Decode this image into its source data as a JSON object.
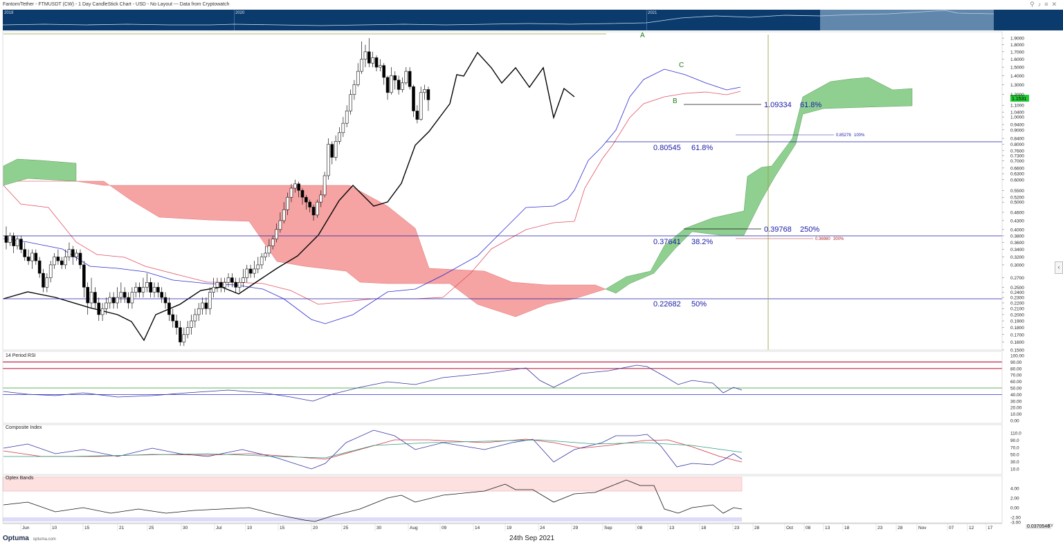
{
  "title": "Fantom/Tether - FTMUSDT (CW) - 1 Day CandleStick Chart - USD - No Layout --- Data from Cryptowatch",
  "toolbar_icons": [
    "pin-icon",
    "bell-icon",
    "menu-icon",
    "close-icon"
  ],
  "overview": {
    "years": [
      "2019",
      "2020",
      "2021"
    ]
  },
  "price_badge": "1.1531",
  "footer": {
    "logo": "Optuma",
    "site": "optuma.com",
    "date": "24th Sep 2021",
    "value": "0.0370546",
    "xy": "XY"
  },
  "panels": {
    "rsi": "14 Period RSI",
    "composite": "Composite Index",
    "optex": "Optex Bands"
  },
  "colors": {
    "up": "#ffffff",
    "down": "#000000",
    "kijun": "#e05060",
    "tenkan": "#2a2ad0",
    "bull_cloud": "#8fcf8f",
    "bear_cloud": "#f59a9a",
    "fib": "#1a1aa8",
    "badge": "#22cc33",
    "overview": "#0b3a6c"
  },
  "chart_data": {
    "type": "candlestick",
    "title": "Fantom/Tether - FTMUSDT (CW) - 1 Day CandleStick Chart - USD",
    "yscale": "log",
    "ylim": [
      0.15,
      2.0
    ],
    "y_ticks": [
      "1.9000",
      "1.8000",
      "1.7000",
      "1.6000",
      "1.5000",
      "1.4000",
      "1.3000",
      "1.2000",
      "1.1000",
      "1.0400",
      "1.0000",
      "0.9400",
      "0.9000",
      "0.8400",
      "0.8000",
      "0.7600",
      "0.7300",
      "0.7000",
      "0.6600",
      "0.6300",
      "0.6000",
      "0.5500",
      "0.5200",
      "0.5000",
      "0.4600",
      "0.4300",
      "0.4000",
      "0.3800",
      "0.3600",
      "0.3400",
      "0.3200",
      "0.3000",
      "0.2700",
      "0.2500",
      "0.2400",
      "0.2300",
      "0.2200",
      "0.2100",
      "0.2000",
      "0.1900",
      "0.1800",
      "0.1700",
      "0.1600",
      "0.1500"
    ],
    "x_ticks": [
      "Jun",
      "10",
      "15",
      "21",
      "25",
      "30",
      "Jul",
      "10",
      "15",
      "20",
      "25",
      "30",
      "Aug",
      "09",
      "14",
      "19",
      "24",
      "29",
      "Sep",
      "08",
      "13",
      "18",
      "23",
      "28",
      "Oct",
      "08",
      "13",
      "18",
      "23",
      "28",
      "Nov",
      "07",
      "12",
      "17"
    ],
    "candles": [
      [
        0.38,
        0.36,
        0.41,
        0.34
      ],
      [
        0.36,
        0.38,
        0.39,
        0.35
      ],
      [
        0.38,
        0.35,
        0.39,
        0.33
      ],
      [
        0.35,
        0.37,
        0.38,
        0.34
      ],
      [
        0.37,
        0.34,
        0.38,
        0.33
      ],
      [
        0.34,
        0.32,
        0.36,
        0.31
      ],
      [
        0.32,
        0.31,
        0.34,
        0.3
      ],
      [
        0.31,
        0.33,
        0.34,
        0.29
      ],
      [
        0.33,
        0.31,
        0.34,
        0.3
      ],
      [
        0.31,
        0.28,
        0.32,
        0.27
      ],
      [
        0.28,
        0.25,
        0.29,
        0.24
      ],
      [
        0.25,
        0.27,
        0.28,
        0.24
      ],
      [
        0.27,
        0.3,
        0.31,
        0.26
      ],
      [
        0.3,
        0.32,
        0.33,
        0.29
      ],
      [
        0.32,
        0.31,
        0.34,
        0.3
      ],
      [
        0.31,
        0.3,
        0.32,
        0.29
      ],
      [
        0.3,
        0.32,
        0.34,
        0.29
      ],
      [
        0.32,
        0.34,
        0.36,
        0.31
      ],
      [
        0.34,
        0.32,
        0.35,
        0.3
      ],
      [
        0.32,
        0.33,
        0.34,
        0.31
      ],
      [
        0.33,
        0.3,
        0.34,
        0.29
      ],
      [
        0.3,
        0.25,
        0.31,
        0.23
      ],
      [
        0.25,
        0.22,
        0.26,
        0.2
      ],
      [
        0.22,
        0.24,
        0.27,
        0.21
      ],
      [
        0.24,
        0.22,
        0.25,
        0.21
      ],
      [
        0.22,
        0.2,
        0.23,
        0.19
      ],
      [
        0.2,
        0.21,
        0.22,
        0.19
      ],
      [
        0.21,
        0.22,
        0.23,
        0.2
      ],
      [
        0.22,
        0.23,
        0.24,
        0.21
      ],
      [
        0.23,
        0.22,
        0.24,
        0.21
      ],
      [
        0.22,
        0.23,
        0.25,
        0.21
      ],
      [
        0.23,
        0.24,
        0.26,
        0.22
      ],
      [
        0.24,
        0.23,
        0.25,
        0.22
      ],
      [
        0.23,
        0.22,
        0.24,
        0.21
      ],
      [
        0.22,
        0.24,
        0.25,
        0.21
      ],
      [
        0.24,
        0.25,
        0.26,
        0.23
      ],
      [
        0.25,
        0.24,
        0.26,
        0.23
      ],
      [
        0.24,
        0.25,
        0.27,
        0.23
      ],
      [
        0.25,
        0.26,
        0.28,
        0.24
      ],
      [
        0.26,
        0.24,
        0.27,
        0.23
      ],
      [
        0.24,
        0.25,
        0.26,
        0.23
      ],
      [
        0.25,
        0.24,
        0.26,
        0.23
      ],
      [
        0.24,
        0.23,
        0.25,
        0.22
      ],
      [
        0.23,
        0.22,
        0.24,
        0.21
      ],
      [
        0.22,
        0.2,
        0.23,
        0.19
      ],
      [
        0.2,
        0.19,
        0.21,
        0.18
      ],
      [
        0.19,
        0.18,
        0.2,
        0.17
      ],
      [
        0.18,
        0.16,
        0.19,
        0.155
      ],
      [
        0.16,
        0.17,
        0.18,
        0.155
      ],
      [
        0.17,
        0.18,
        0.19,
        0.165
      ],
      [
        0.18,
        0.19,
        0.2,
        0.17
      ],
      [
        0.19,
        0.2,
        0.21,
        0.18
      ],
      [
        0.2,
        0.21,
        0.22,
        0.19
      ],
      [
        0.21,
        0.22,
        0.23,
        0.2
      ],
      [
        0.22,
        0.21,
        0.23,
        0.2
      ],
      [
        0.21,
        0.24,
        0.25,
        0.2
      ],
      [
        0.24,
        0.25,
        0.27,
        0.23
      ],
      [
        0.25,
        0.26,
        0.27,
        0.24
      ],
      [
        0.26,
        0.25,
        0.27,
        0.24
      ],
      [
        0.25,
        0.26,
        0.27,
        0.24
      ],
      [
        0.26,
        0.27,
        0.28,
        0.25
      ],
      [
        0.27,
        0.26,
        0.28,
        0.25
      ],
      [
        0.26,
        0.25,
        0.27,
        0.24
      ],
      [
        0.25,
        0.26,
        0.27,
        0.24
      ],
      [
        0.26,
        0.27,
        0.29,
        0.25
      ],
      [
        0.27,
        0.29,
        0.3,
        0.26
      ],
      [
        0.29,
        0.28,
        0.3,
        0.27
      ],
      [
        0.28,
        0.29,
        0.31,
        0.27
      ],
      [
        0.29,
        0.3,
        0.32,
        0.28
      ],
      [
        0.3,
        0.32,
        0.33,
        0.29
      ],
      [
        0.32,
        0.33,
        0.35,
        0.31
      ],
      [
        0.33,
        0.35,
        0.37,
        0.32
      ],
      [
        0.35,
        0.37,
        0.38,
        0.34
      ],
      [
        0.37,
        0.4,
        0.42,
        0.36
      ],
      [
        0.4,
        0.43,
        0.46,
        0.39
      ],
      [
        0.43,
        0.47,
        0.5,
        0.42
      ],
      [
        0.47,
        0.52,
        0.54,
        0.45
      ],
      [
        0.52,
        0.56,
        0.58,
        0.5
      ],
      [
        0.56,
        0.58,
        0.6,
        0.54
      ],
      [
        0.58,
        0.55,
        0.59,
        0.52
      ],
      [
        0.55,
        0.52,
        0.56,
        0.49
      ],
      [
        0.52,
        0.5,
        0.53,
        0.47
      ],
      [
        0.5,
        0.48,
        0.51,
        0.46
      ],
      [
        0.48,
        0.45,
        0.49,
        0.43
      ],
      [
        0.45,
        0.5,
        0.51,
        0.44
      ],
      [
        0.5,
        0.53,
        0.55,
        0.48
      ],
      [
        0.53,
        0.62,
        0.64,
        0.52
      ],
      [
        0.62,
        0.8,
        0.84,
        0.6
      ],
      [
        0.8,
        0.72,
        0.82,
        0.68
      ],
      [
        0.72,
        0.82,
        0.86,
        0.7
      ],
      [
        0.82,
        0.88,
        0.92,
        0.8
      ],
      [
        0.88,
        0.95,
        1.0,
        0.85
      ],
      [
        0.95,
        1.05,
        1.1,
        0.92
      ],
      [
        1.05,
        1.2,
        1.25,
        1.02
      ],
      [
        1.2,
        1.3,
        1.35,
        1.15
      ],
      [
        1.3,
        1.45,
        1.55,
        1.28
      ],
      [
        1.45,
        1.6,
        1.85,
        1.42
      ],
      [
        1.6,
        1.7,
        1.8,
        1.5
      ],
      [
        1.7,
        1.55,
        1.9,
        1.5
      ],
      [
        1.55,
        1.62,
        1.7,
        1.5
      ],
      [
        1.62,
        1.5,
        1.65,
        1.45
      ],
      [
        1.5,
        1.52,
        1.6,
        1.45
      ],
      [
        1.52,
        1.38,
        1.55,
        1.3
      ],
      [
        1.38,
        1.22,
        1.4,
        1.15
      ],
      [
        1.22,
        1.4,
        1.5,
        1.2
      ],
      [
        1.4,
        1.35,
        1.45,
        1.25
      ],
      [
        1.35,
        1.25,
        1.4,
        1.2
      ],
      [
        1.25,
        1.32,
        1.38,
        1.22
      ],
      [
        1.32,
        1.45,
        1.5,
        1.3
      ],
      [
        1.45,
        1.28,
        1.5,
        1.25
      ],
      [
        1.28,
        1.05,
        1.3,
        1.0
      ],
      [
        1.05,
        0.98,
        1.1,
        0.95
      ],
      [
        0.98,
        1.22,
        1.28,
        0.97
      ],
      [
        1.22,
        1.25,
        1.3,
        1.15
      ],
      [
        1.25,
        1.15,
        1.28,
        1.05
      ]
    ],
    "fib_levels": [
      {
        "value": "1.09334",
        "pct": "61.8%"
      },
      {
        "value": "0.85278",
        "pct": "100%"
      },
      {
        "value": "0.80545",
        "pct": "61.8%"
      },
      {
        "value": "0.39768",
        "pct": "250%"
      },
      {
        "value": "0.37641",
        "pct": "38.2%"
      },
      {
        "value": "0.36980",
        "pct": "300%"
      },
      {
        "value": "0.22682",
        "pct": "50%"
      }
    ],
    "wave_labels": [
      "A",
      "B",
      "C"
    ],
    "rsi": {
      "ticks": [
        "100.00",
        "90.00",
        "80.00",
        "70.00",
        "60.00",
        "50.00",
        "40.00",
        "30.00",
        "20.00",
        "10.00",
        "0.00"
      ],
      "levels": [
        90,
        80,
        50,
        40
      ]
    },
    "composite": {
      "ticks": [
        "110.0",
        "90.0",
        "70.0",
        "50.0",
        "30.0",
        "10.0"
      ]
    },
    "optex": {
      "ticks": [
        "4.00",
        "2.00",
        "0.00",
        "-2.00",
        "-3.00"
      ]
    }
  }
}
